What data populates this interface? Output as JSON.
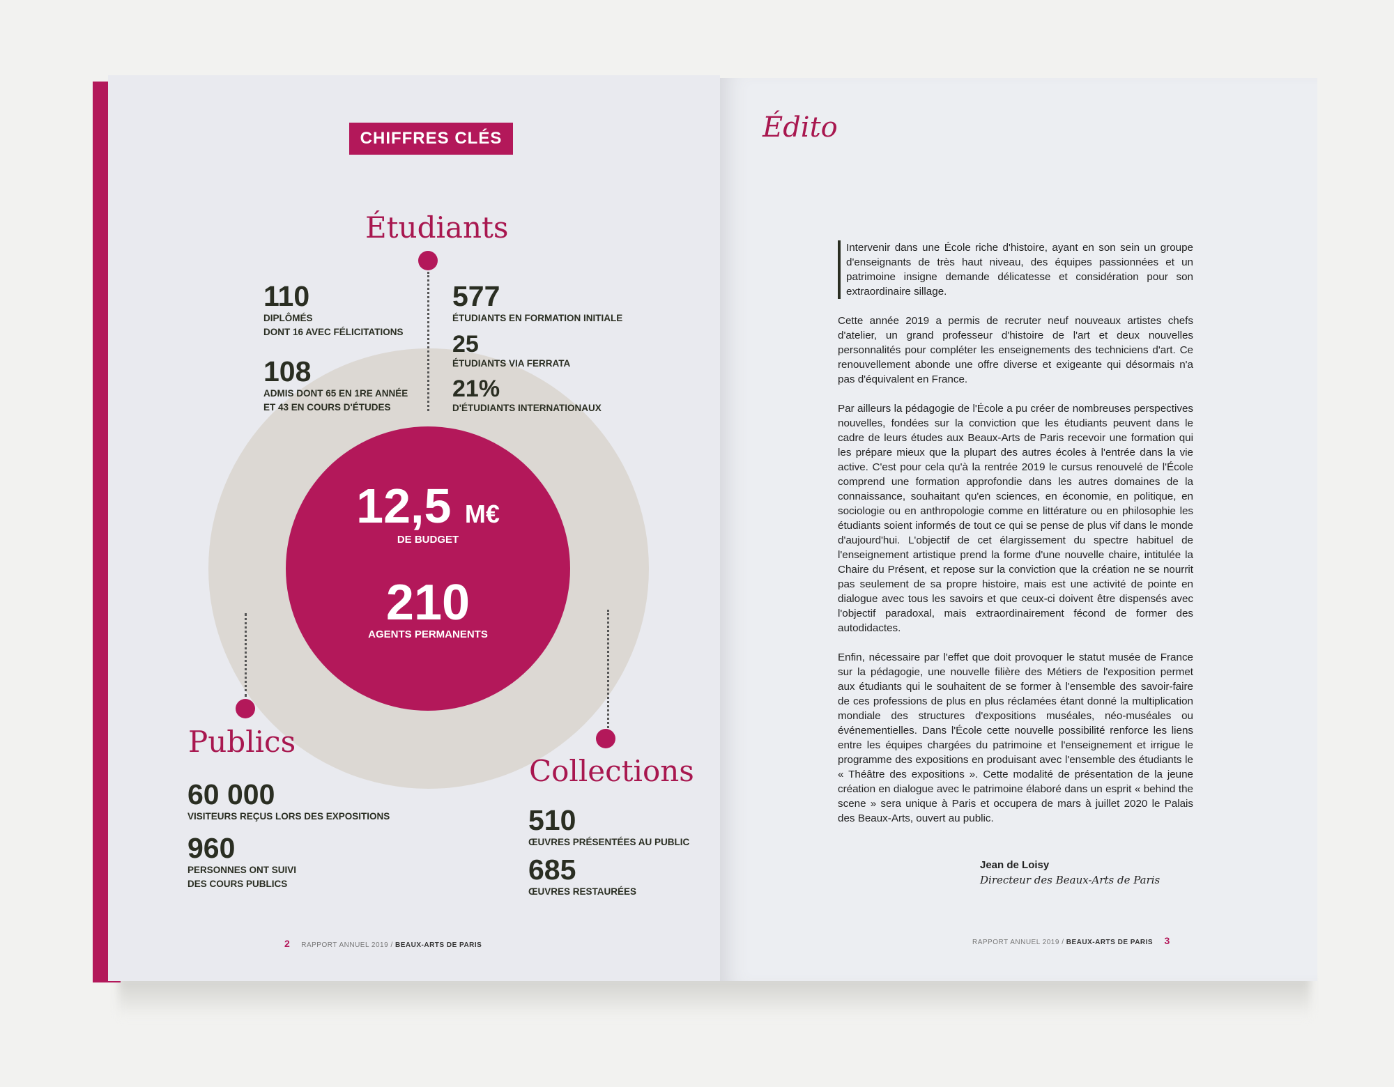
{
  "colors": {
    "accent": "#b3185a",
    "circle": "#dcd8d3",
    "text": "#2a2e22"
  },
  "left_page": {
    "badge": "CHIFFRES CLÉS",
    "etudiants": {
      "title": "Étudiants",
      "stats_left": [
        {
          "value": "110",
          "label_lines": [
            "DIPLÔMÉS",
            "DONT 16 AVEC FÉLICITATIONS"
          ]
        },
        {
          "value": "108",
          "label_lines": [
            "ADMIS DONT 65 EN 1RE ANNÉE",
            "ET 43 EN COURS D'ÉTUDES"
          ]
        }
      ],
      "stats_right": [
        {
          "value": "577",
          "label_lines": [
            "ÉTUDIANTS EN FORMATION INITIALE"
          ]
        },
        {
          "value": "25",
          "label_lines": [
            "ÉTUDIANTS VIA FERRATA"
          ]
        },
        {
          "value": "21%",
          "label_lines": [
            "D'ÉTUDIANTS INTERNATIONAUX"
          ]
        }
      ]
    },
    "center": {
      "budget_value": "12,5",
      "budget_unit": "M€",
      "budget_label": "DE BUDGET",
      "agents_value": "210",
      "agents_label": "AGENTS PERMANENTS"
    },
    "publics": {
      "title": "Publics",
      "stats": [
        {
          "value": "60 000",
          "label_lines": [
            "VISITEURS REÇUS LORS DES EXPOSITIONS"
          ]
        },
        {
          "value": "960",
          "label_lines": [
            "PERSONNES ONT SUIVI",
            "DES COURS PUBLICS"
          ]
        }
      ]
    },
    "collections": {
      "title": "Collections",
      "stats": [
        {
          "value": "510",
          "label_lines": [
            "ŒUVRES PRÉSENTÉES AU PUBLIC"
          ]
        },
        {
          "value": "685",
          "label_lines": [
            "ŒUVRES RESTAURÉES"
          ]
        }
      ]
    },
    "footer": {
      "page": "2",
      "report": "RAPPORT ANNUEL 2019 / ",
      "institution": "BEAUX-ARTS DE PARIS"
    }
  },
  "right_page": {
    "title": "Édito",
    "paragraphs": [
      "Intervenir dans une École riche d'histoire, ayant en son sein un groupe d'enseignants de très haut niveau, des équipes passionnées et un patrimoine insigne demande délicatesse et considération pour son extraordinaire sillage.",
      "Cette année 2019 a permis de recruter neuf nouveaux artistes chefs d'atelier, un grand professeur d'histoire de l'art et deux nouvelles personnalités pour compléter les enseignements des techniciens d'art. Ce renouvellement abonde une offre diverse et exigeante qui désormais n'a pas d'équivalent en France.",
      "Par ailleurs la pédagogie de l'École a pu créer de nombreuses perspectives nouvelles, fondées sur la conviction que les étudiants peuvent dans le cadre de leurs études aux Beaux-Arts de Paris recevoir une formation qui les prépare mieux que la plupart des autres écoles à l'entrée dans la vie active. C'est pour cela qu'à la rentrée 2019 le cursus renouvelé de l'École comprend une formation approfondie dans les autres domaines de la connaissance, souhaitant qu'en sciences, en économie, en politique, en sociologie ou en anthropologie comme en littérature ou en philosophie les étudiants soient informés de tout ce qui se pense de plus vif dans le monde d'aujourd'hui. L'objectif de cet élargissement du spectre habituel de l'enseignement artistique prend la forme d'une nouvelle chaire, intitulée la Chaire du Présent, et repose sur la conviction que la création ne se nourrit pas seulement de sa propre histoire, mais est une activité de pointe en dialogue avec tous les savoirs et que ceux-ci doivent être dispensés avec l'objectif paradoxal, mais extraordinairement fécond de former des autodidactes.",
      "Enfin, nécessaire par l'effet que doit provoquer le statut musée de France sur la pédagogie, une nouvelle filière des Métiers de l'exposition permet aux étudiants qui le souhaitent de se former à l'ensemble des savoir-faire de ces professions de plus en plus réclamées étant donné la multiplication mondiale des structures d'expositions muséales, néo-muséales ou événementielles. Dans l'École cette nouvelle possibilité renforce les liens entre les équipes chargées du patrimoine et l'enseignement et irrigue le programme des expositions en produisant avec l'ensemble des étudiants le « Théâtre des expositions ». Cette modalité de présentation de la jeune création en dialogue avec le patrimoine élaboré dans un esprit « behind the scene » sera unique à Paris et occupera de mars à juillet 2020 le Palais des Beaux-Arts, ouvert au public."
    ],
    "signature": {
      "name": "Jean de Loisy",
      "role": "Directeur des Beaux-Arts de Paris"
    },
    "footer": {
      "page": "3",
      "report": "RAPPORT ANNUEL 2019 / ",
      "institution": "BEAUX-ARTS DE PARIS"
    }
  }
}
